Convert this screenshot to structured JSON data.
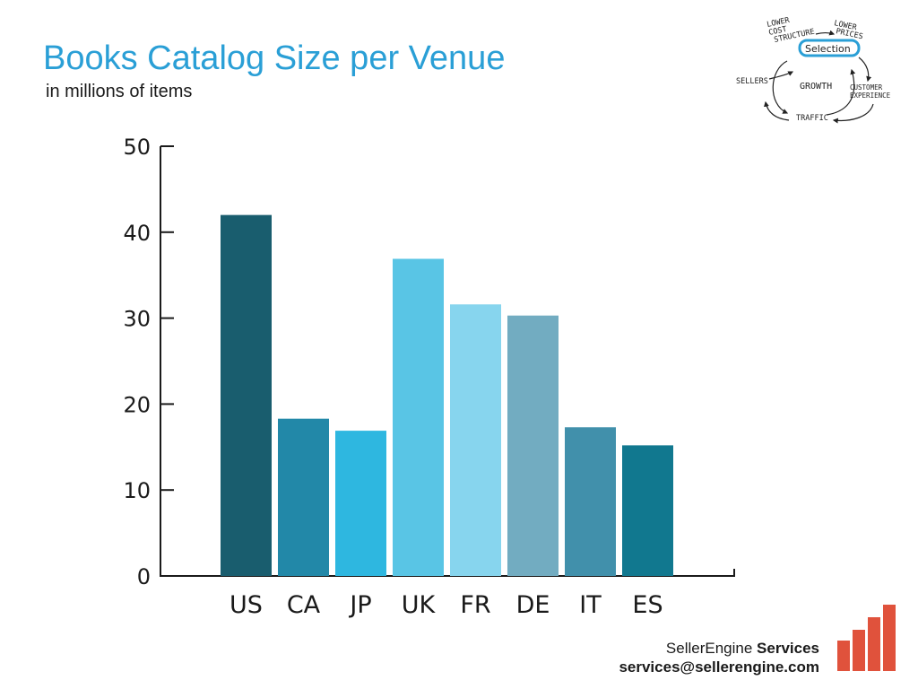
{
  "slide": {
    "title": "Books Catalog Size per Venue",
    "subtitle": "in millions of items"
  },
  "chart_data": {
    "type": "bar",
    "title": "Books Catalog Size per Venue",
    "subtitle": "in millions of items",
    "xlabel": "",
    "ylabel": "",
    "categories": [
      "US",
      "CA",
      "JP",
      "UK",
      "FR",
      "DE",
      "IT",
      "ES"
    ],
    "values": [
      42,
      18.3,
      16.9,
      36.9,
      31.6,
      30.3,
      17.3,
      15.2
    ],
    "colors": [
      "#195d6e",
      "#2288a8",
      "#2eb7e0",
      "#59c5e5",
      "#87d5ee",
      "#72acc1",
      "#4190ab",
      "#11788f"
    ],
    "ylim": [
      0,
      50
    ],
    "yticks": [
      0,
      10,
      20,
      30,
      40,
      50
    ],
    "grid": false,
    "legend": "none"
  },
  "flywheel": {
    "lower_cost_structure": [
      "LOWER",
      "COST",
      "STRUCTURE"
    ],
    "lower_prices": [
      "LOWER",
      "PRICES"
    ],
    "selection": "Selection",
    "sellers": "SELLERS",
    "growth": "GROWTH",
    "customer_experience": [
      "CUSTOMER",
      "EXPERIENCE"
    ],
    "traffic": "TRAFFIC",
    "highlight_color": "#2a9fd6"
  },
  "footer": {
    "brand_name": "SellerEngine",
    "brand_suffix": "Services",
    "email": "services@sellerengine.com",
    "logo_color": "#e0523c"
  }
}
